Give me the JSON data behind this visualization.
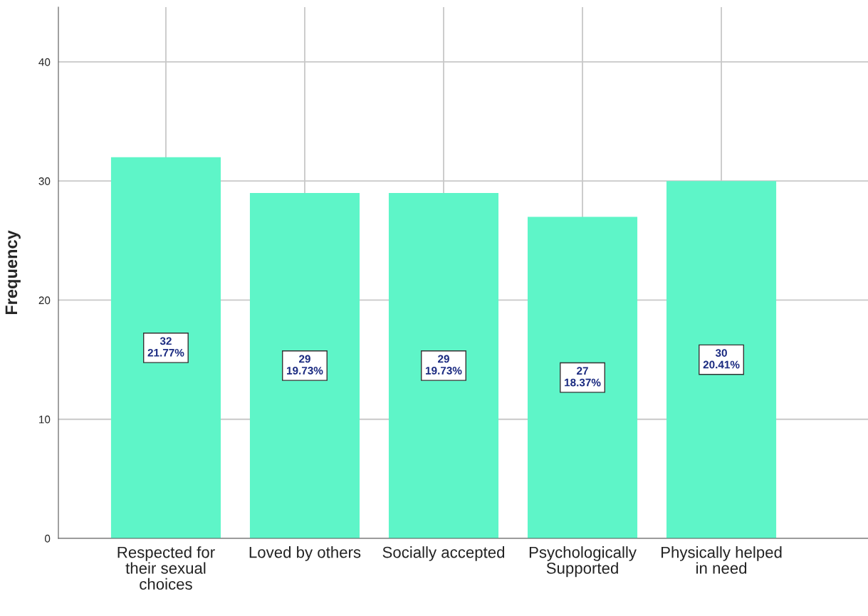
{
  "chart_data": {
    "type": "bar",
    "ylabel": "Frequency",
    "categories": [
      "Respected for\ntheir sexual\nchoices",
      "Loved by others",
      "Socially accepted",
      "Psychologically\nSupported",
      "Physically helped\nin need"
    ],
    "values": [
      32,
      29,
      29,
      27,
      30
    ],
    "value_labels": [
      "32\n21.77%",
      "29\n19.73%",
      "29\n19.73%",
      "27\n18.37%",
      "30\n20.41%"
    ],
    "color": "#5ef5c8",
    "ylim": [
      0,
      44.6
    ],
    "yticks": [
      0,
      10,
      20,
      30,
      40
    ],
    "grid": true
  }
}
